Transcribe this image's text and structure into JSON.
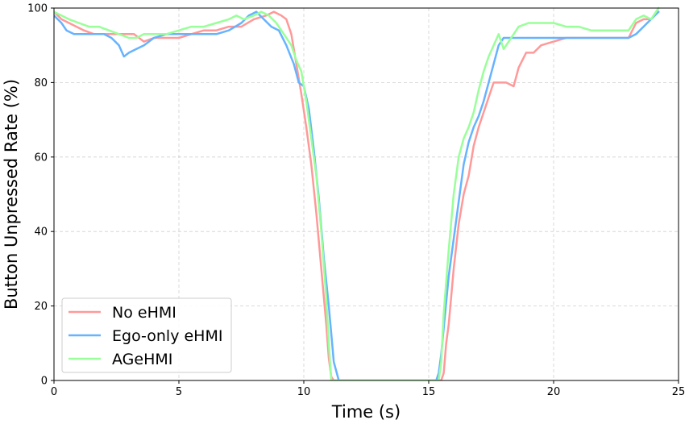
{
  "chart_data": {
    "type": "line",
    "title": "",
    "xlabel": "Time (s)",
    "ylabel": "Button Unpressed Rate (%)",
    "xlim": [
      0,
      25
    ],
    "ylim": [
      0,
      100
    ],
    "xticks": [
      "0",
      "5",
      "10",
      "15",
      "20",
      "25"
    ],
    "yticks": [
      "0",
      "20",
      "40",
      "60",
      "80",
      "100"
    ],
    "grid": true,
    "legend_position": "lower-left",
    "series": [
      {
        "name": "No eHMI",
        "color": "#ff9999",
        "x": [
          0,
          0.3,
          0.6,
          0.9,
          1.2,
          1.6,
          2.0,
          2.4,
          2.8,
          3.2,
          3.6,
          4.0,
          4.5,
          5.0,
          5.5,
          6.0,
          6.5,
          7.0,
          7.5,
          8.0,
          8.5,
          8.8,
          9.1,
          9.3,
          9.5,
          9.7,
          9.9,
          10.1,
          10.3,
          10.5,
          10.7,
          10.9,
          11.0,
          11.1,
          11.2,
          15.5,
          15.6,
          15.7,
          15.8,
          16.0,
          16.2,
          16.4,
          16.6,
          16.8,
          17.0,
          17.2,
          17.4,
          17.6,
          17.8,
          18.1,
          18.4,
          18.6,
          18.9,
          19.2,
          19.5,
          20.0,
          20.5,
          21.0,
          21.5,
          22.0,
          22.5,
          23.0,
          23.3,
          23.6,
          23.9,
          24.2
        ],
        "values": [
          99,
          97,
          96,
          95,
          94,
          93,
          93,
          93,
          93,
          93,
          91,
          92,
          92,
          92,
          93,
          94,
          94,
          95,
          95,
          97,
          98,
          99,
          98,
          97,
          93,
          85,
          77,
          68,
          58,
          45,
          30,
          15,
          6,
          1,
          0,
          0,
          2,
          10,
          15,
          30,
          42,
          50,
          55,
          63,
          68,
          72,
          76,
          80,
          80,
          80,
          79,
          84,
          88,
          88,
          90,
          91,
          92,
          92,
          92,
          92,
          92,
          92,
          96,
          97,
          97,
          99
        ]
      },
      {
        "name": "Ego-only eHMI",
        "color": "#66b3ff",
        "x": [
          0,
          0.3,
          0.5,
          0.8,
          1.2,
          1.6,
          2.0,
          2.3,
          2.6,
          2.8,
          3.0,
          3.3,
          3.6,
          4.0,
          4.5,
          5.0,
          5.5,
          6.0,
          6.5,
          7.0,
          7.5,
          7.8,
          8.1,
          8.4,
          8.7,
          9.0,
          9.3,
          9.6,
          9.8,
          10.0,
          10.2,
          10.4,
          10.6,
          10.8,
          11.0,
          11.2,
          11.4,
          15.3,
          15.4,
          15.5,
          15.6,
          15.8,
          16.0,
          16.2,
          16.4,
          16.6,
          16.8,
          17.0,
          17.2,
          17.4,
          17.6,
          17.8,
          18.0,
          18.3,
          18.6,
          19.0,
          19.5,
          20.0,
          20.5,
          21.0,
          21.5,
          22.0,
          22.5,
          23.0,
          23.3,
          23.6,
          23.9,
          24.2
        ],
        "values": [
          98,
          96,
          94,
          93,
          93,
          93,
          93,
          92,
          90,
          87,
          88,
          89,
          90,
          92,
          93,
          93,
          93,
          93,
          93,
          94,
          96,
          98,
          99,
          97,
          95,
          94,
          90,
          85,
          80,
          79,
          73,
          62,
          49,
          33,
          20,
          5,
          0,
          0,
          2,
          7,
          14,
          28,
          38,
          48,
          58,
          64,
          68,
          71,
          75,
          80,
          85,
          90,
          92,
          92,
          92,
          92,
          92,
          92,
          92,
          92,
          92,
          92,
          92,
          92,
          93,
          95,
          97,
          99
        ]
      },
      {
        "name": "AGeHMI",
        "color": "#99ff99",
        "x": [
          0,
          0.3,
          0.6,
          1.0,
          1.4,
          1.8,
          2.2,
          2.6,
          3.0,
          3.3,
          3.6,
          4.0,
          4.5,
          5.0,
          5.5,
          6.0,
          6.5,
          7.0,
          7.3,
          7.6,
          8.0,
          8.3,
          8.6,
          8.9,
          9.2,
          9.5,
          9.7,
          9.9,
          10.1,
          10.3,
          10.5,
          10.7,
          10.9,
          11.0,
          11.1,
          15.4,
          15.5,
          15.6,
          15.8,
          16.0,
          16.2,
          16.4,
          16.6,
          16.8,
          17.0,
          17.2,
          17.4,
          17.6,
          17.8,
          18.0,
          18.3,
          18.6,
          19.0,
          19.5,
          20.0,
          20.5,
          21.0,
          21.5,
          22.0,
          22.5,
          23.0,
          23.3,
          23.6,
          23.9,
          24.2
        ],
        "values": [
          99,
          98,
          97,
          96,
          95,
          95,
          94,
          93,
          92,
          92,
          93,
          93,
          93,
          94,
          95,
          95,
          96,
          97,
          98,
          97,
          98,
          99,
          98,
          96,
          93,
          90,
          86,
          83,
          75,
          65,
          55,
          40,
          22,
          10,
          0,
          0,
          5,
          18,
          35,
          50,
          60,
          65,
          68,
          72,
          78,
          83,
          87,
          90,
          93,
          89,
          92,
          95,
          96,
          96,
          96,
          95,
          95,
          94,
          94,
          94,
          94,
          97,
          98,
          97,
          100
        ]
      }
    ]
  }
}
